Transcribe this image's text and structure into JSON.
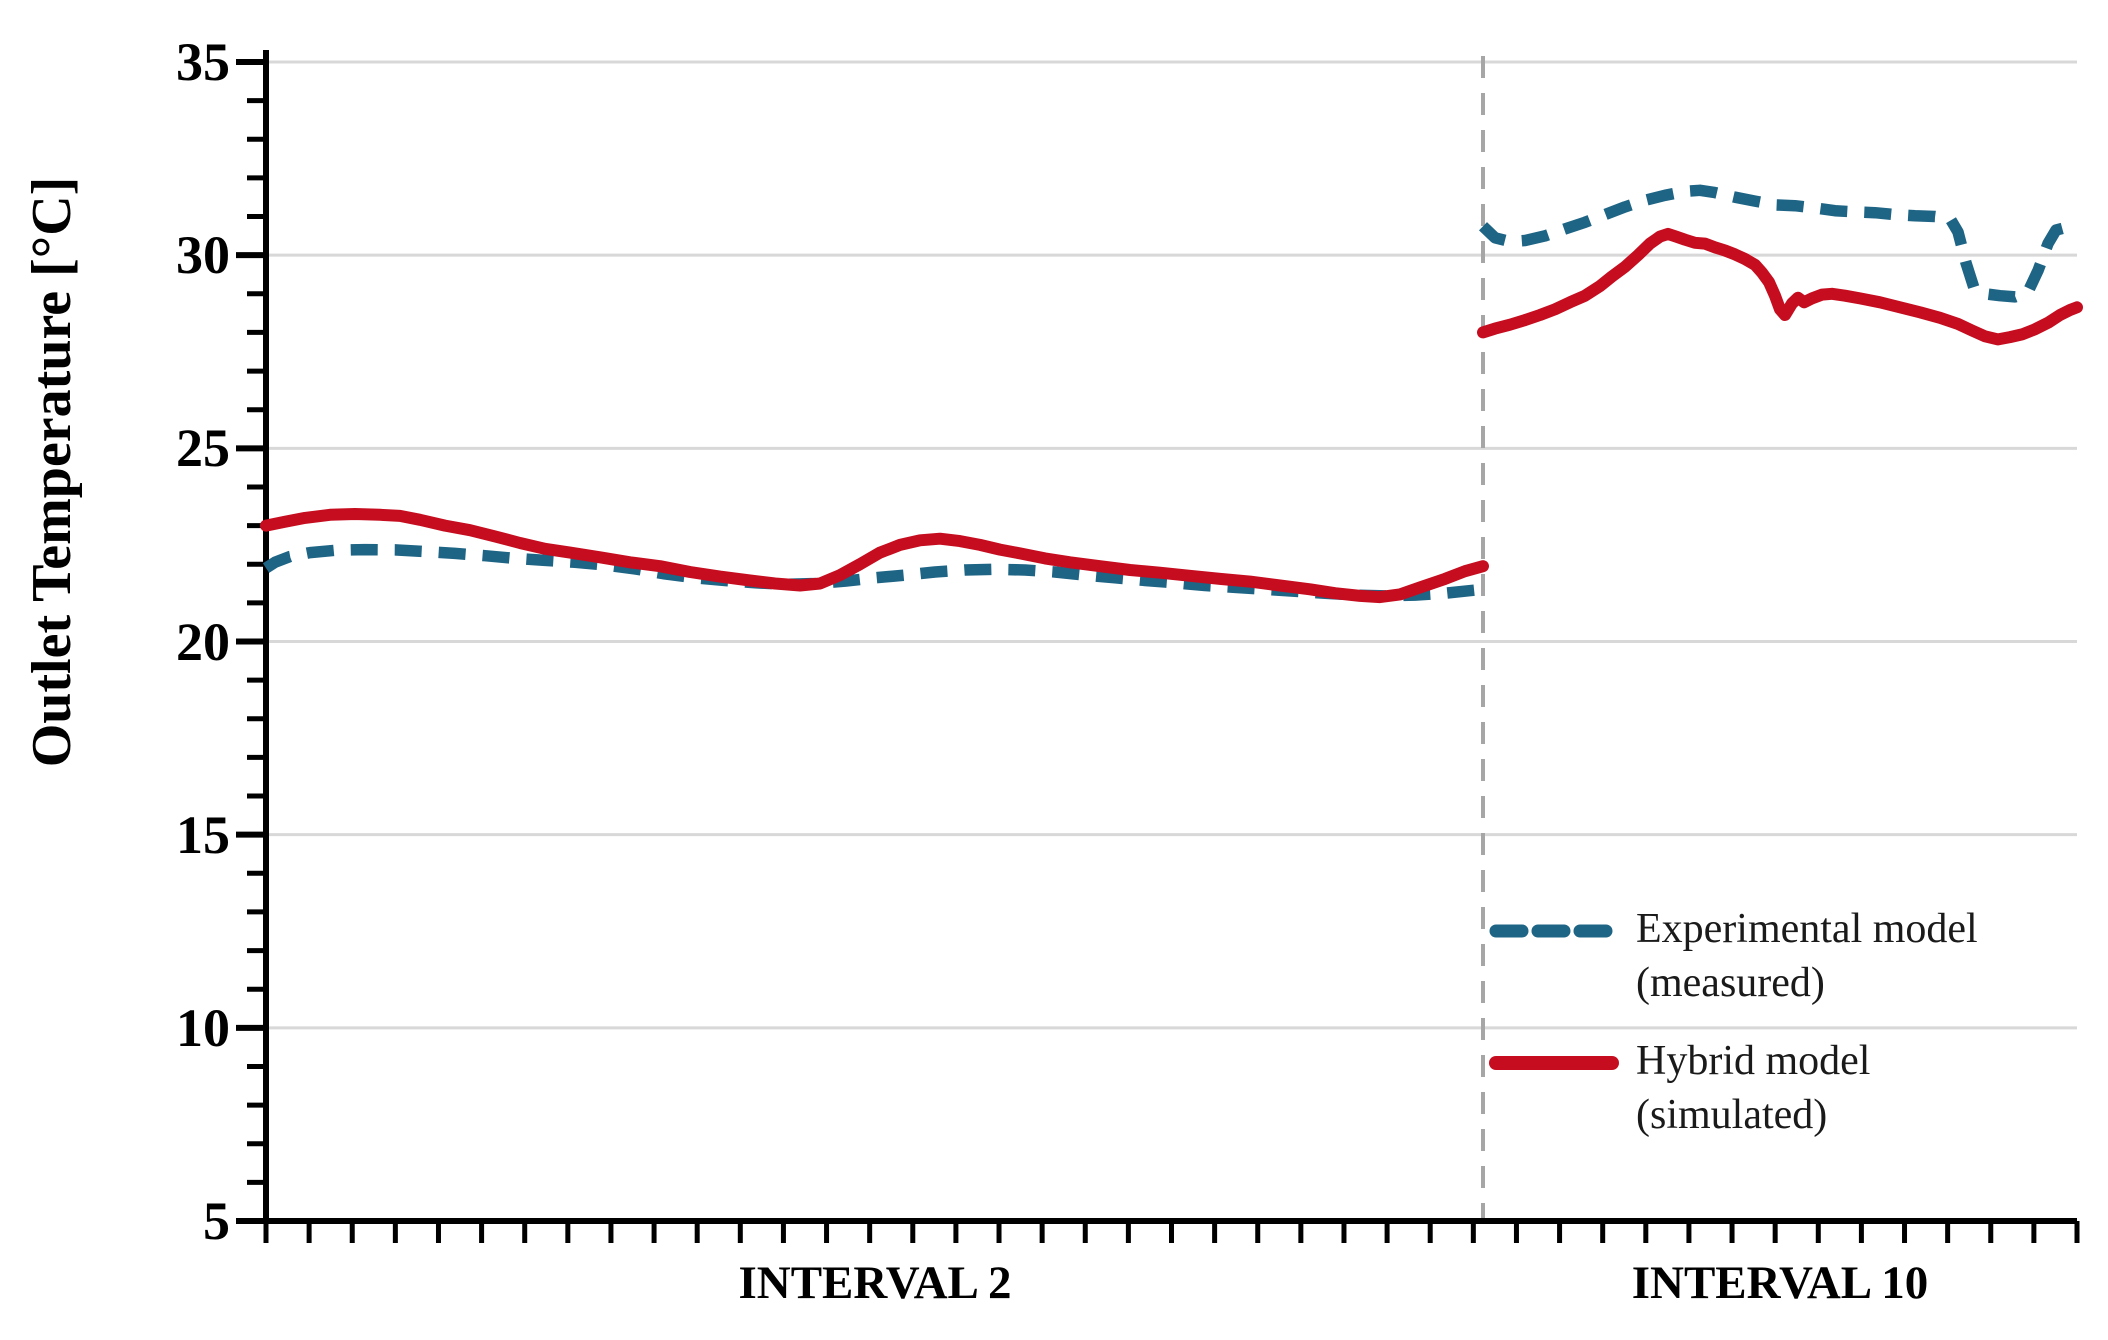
{
  "chart_data": {
    "type": "line",
    "title": "",
    "ylabel": "Outlet Temperature [°C]",
    "xlabel": "",
    "ylim": [
      5,
      35
    ],
    "y_ticks": [
      35,
      30,
      25,
      20,
      15,
      10,
      5
    ],
    "y_minor_tick_step": 1,
    "grid": "horizontal light gray lines at major y ticks",
    "legend_position": "lower right inside plot",
    "x_axis": {
      "intervals": [
        {
          "label": "INTERVAL 2"
        },
        {
          "label": "INTERVAL 10"
        }
      ],
      "divider_style": "vertical gray dashed line between intervals",
      "minor_ticks_only": true
    },
    "colors": {
      "grid": "#d8d8d8",
      "divider": "#a6a6a6",
      "axis": "#000000"
    },
    "series": [
      {
        "name": "Experimental model (measured)",
        "style": "dashed",
        "color": "#1e6485",
        "points_interval2": [
          [
            266,
            21.9
          ],
          [
            275,
            22.05
          ],
          [
            290,
            22.2
          ],
          [
            310,
            22.3
          ],
          [
            335,
            22.36
          ],
          [
            365,
            22.38
          ],
          [
            395,
            22.37
          ],
          [
            425,
            22.33
          ],
          [
            455,
            22.28
          ],
          [
            485,
            22.22
          ],
          [
            515,
            22.15
          ],
          [
            545,
            22.1
          ],
          [
            575,
            22.05
          ],
          [
            605,
            21.98
          ],
          [
            635,
            21.88
          ],
          [
            665,
            21.75
          ],
          [
            695,
            21.65
          ],
          [
            725,
            21.58
          ],
          [
            755,
            21.52
          ],
          [
            785,
            21.48
          ],
          [
            815,
            21.5
          ],
          [
            845,
            21.56
          ],
          [
            875,
            21.65
          ],
          [
            905,
            21.72
          ],
          [
            935,
            21.8
          ],
          [
            965,
            21.85
          ],
          [
            995,
            21.87
          ],
          [
            1025,
            21.85
          ],
          [
            1055,
            21.8
          ],
          [
            1085,
            21.72
          ],
          [
            1115,
            21.65
          ],
          [
            1145,
            21.58
          ],
          [
            1175,
            21.52
          ],
          [
            1205,
            21.45
          ],
          [
            1235,
            21.4
          ],
          [
            1265,
            21.35
          ],
          [
            1295,
            21.3
          ],
          [
            1325,
            21.25
          ],
          [
            1355,
            21.2
          ],
          [
            1385,
            21.18
          ],
          [
            1415,
            21.2
          ],
          [
            1445,
            21.25
          ],
          [
            1483,
            21.35
          ]
        ],
        "points_interval10": [
          [
            1483,
            30.75
          ],
          [
            1495,
            30.45
          ],
          [
            1510,
            30.35
          ],
          [
            1525,
            30.38
          ],
          [
            1545,
            30.5
          ],
          [
            1565,
            30.68
          ],
          [
            1585,
            30.85
          ],
          [
            1605,
            31.05
          ],
          [
            1625,
            31.25
          ],
          [
            1645,
            31.42
          ],
          [
            1665,
            31.55
          ],
          [
            1685,
            31.65
          ],
          [
            1700,
            31.68
          ],
          [
            1715,
            31.62
          ],
          [
            1735,
            31.5
          ],
          [
            1755,
            31.4
          ],
          [
            1775,
            31.3
          ],
          [
            1795,
            31.28
          ],
          [
            1815,
            31.22
          ],
          [
            1835,
            31.15
          ],
          [
            1855,
            31.12
          ],
          [
            1875,
            31.1
          ],
          [
            1895,
            31.05
          ],
          [
            1915,
            31.02
          ],
          [
            1935,
            31.0
          ],
          [
            1950,
            30.95
          ],
          [
            1958,
            30.6
          ],
          [
            1966,
            29.8
          ],
          [
            1974,
            29.15
          ],
          [
            1985,
            29.0
          ],
          [
            2000,
            28.95
          ],
          [
            2015,
            28.92
          ],
          [
            2028,
            29.05
          ],
          [
            2038,
            29.6
          ],
          [
            2048,
            30.3
          ],
          [
            2056,
            30.65
          ],
          [
            2066,
            30.72
          ],
          [
            2077,
            30.78
          ]
        ]
      },
      {
        "name": "Hybrid model (simulated)",
        "style": "solid",
        "color": "#c50d1f",
        "points_interval2": [
          [
            266,
            23.0
          ],
          [
            285,
            23.1
          ],
          [
            305,
            23.2
          ],
          [
            330,
            23.28
          ],
          [
            355,
            23.3
          ],
          [
            380,
            23.28
          ],
          [
            400,
            23.25
          ],
          [
            420,
            23.15
          ],
          [
            445,
            23.0
          ],
          [
            470,
            22.88
          ],
          [
            495,
            22.72
          ],
          [
            520,
            22.55
          ],
          [
            545,
            22.4
          ],
          [
            570,
            22.3
          ],
          [
            600,
            22.18
          ],
          [
            630,
            22.05
          ],
          [
            660,
            21.95
          ],
          [
            690,
            21.8
          ],
          [
            720,
            21.68
          ],
          [
            750,
            21.58
          ],
          [
            775,
            21.5
          ],
          [
            800,
            21.45
          ],
          [
            820,
            21.5
          ],
          [
            840,
            21.72
          ],
          [
            860,
            22.0
          ],
          [
            880,
            22.3
          ],
          [
            900,
            22.5
          ],
          [
            920,
            22.62
          ],
          [
            940,
            22.66
          ],
          [
            960,
            22.6
          ],
          [
            980,
            22.5
          ],
          [
            1000,
            22.38
          ],
          [
            1020,
            22.28
          ],
          [
            1045,
            22.15
          ],
          [
            1070,
            22.05
          ],
          [
            1100,
            21.95
          ],
          [
            1130,
            21.85
          ],
          [
            1160,
            21.78
          ],
          [
            1190,
            21.7
          ],
          [
            1220,
            21.62
          ],
          [
            1250,
            21.55
          ],
          [
            1280,
            21.45
          ],
          [
            1310,
            21.35
          ],
          [
            1335,
            21.25
          ],
          [
            1360,
            21.18
          ],
          [
            1380,
            21.15
          ],
          [
            1400,
            21.22
          ],
          [
            1420,
            21.4
          ],
          [
            1445,
            21.62
          ],
          [
            1465,
            21.82
          ],
          [
            1483,
            21.95
          ]
        ],
        "points_interval10": [
          [
            1483,
            28.0
          ],
          [
            1495,
            28.1
          ],
          [
            1510,
            28.2
          ],
          [
            1525,
            28.32
          ],
          [
            1540,
            28.45
          ],
          [
            1555,
            28.6
          ],
          [
            1570,
            28.78
          ],
          [
            1585,
            28.95
          ],
          [
            1600,
            29.2
          ],
          [
            1612,
            29.45
          ],
          [
            1625,
            29.7
          ],
          [
            1638,
            30.0
          ],
          [
            1650,
            30.3
          ],
          [
            1660,
            30.48
          ],
          [
            1668,
            30.55
          ],
          [
            1676,
            30.48
          ],
          [
            1685,
            30.4
          ],
          [
            1695,
            30.32
          ],
          [
            1705,
            30.3
          ],
          [
            1715,
            30.2
          ],
          [
            1725,
            30.12
          ],
          [
            1735,
            30.02
          ],
          [
            1745,
            29.9
          ],
          [
            1755,
            29.75
          ],
          [
            1762,
            29.55
          ],
          [
            1769,
            29.3
          ],
          [
            1775,
            28.95
          ],
          [
            1780,
            28.6
          ],
          [
            1785,
            28.45
          ],
          [
            1792,
            28.75
          ],
          [
            1798,
            28.9
          ],
          [
            1804,
            28.78
          ],
          [
            1812,
            28.88
          ],
          [
            1822,
            28.98
          ],
          [
            1832,
            29.0
          ],
          [
            1845,
            28.95
          ],
          [
            1860,
            28.88
          ],
          [
            1880,
            28.78
          ],
          [
            1900,
            28.65
          ],
          [
            1920,
            28.52
          ],
          [
            1940,
            28.38
          ],
          [
            1958,
            28.22
          ],
          [
            1972,
            28.05
          ],
          [
            1985,
            27.9
          ],
          [
            1998,
            27.82
          ],
          [
            2010,
            27.88
          ],
          [
            2022,
            27.95
          ],
          [
            2035,
            28.08
          ],
          [
            2048,
            28.25
          ],
          [
            2060,
            28.45
          ],
          [
            2070,
            28.58
          ],
          [
            2077,
            28.65
          ]
        ]
      }
    ],
    "legend": {
      "entries": [
        {
          "title": "Experimental model",
          "subtitle": "(measured)"
        },
        {
          "title": "Hybrid model",
          "subtitle": "(simulated)"
        }
      ]
    }
  }
}
